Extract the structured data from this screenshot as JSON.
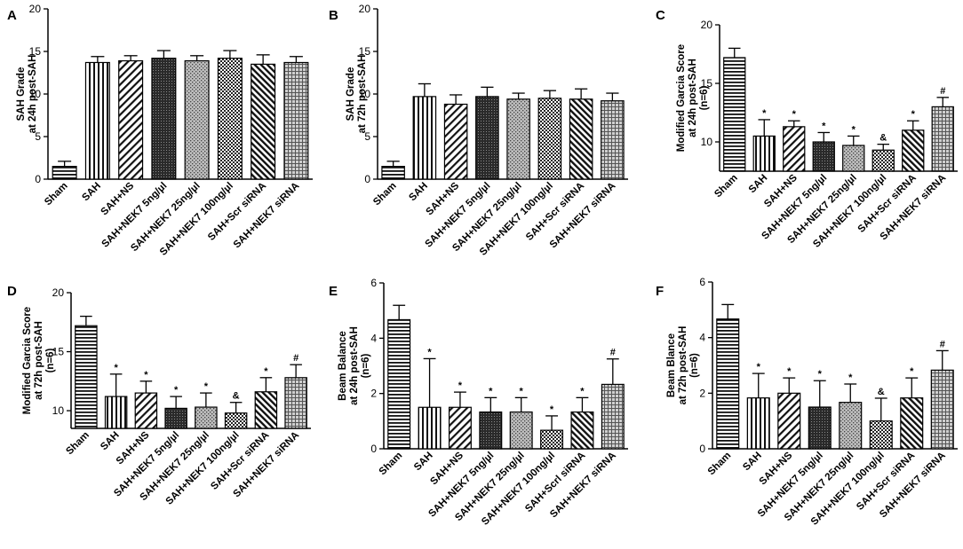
{
  "figure": {
    "categories_common": [
      "Sham",
      "SAH",
      "SAH+NS",
      "SAH+NEK7 5ng/µl",
      "SAH+NEK7 25ng/µl",
      "SAH+NEK7 100ng/µl",
      "SAH+Scr siRNA",
      "SAH+NEK7 siRNA"
    ]
  },
  "chart_data": [
    {
      "id": "A",
      "type": "bar",
      "panel_letter": "A",
      "ylabel": [
        "SAH Grade",
        "at 24h post-SAH"
      ],
      "ylim": [
        0,
        20
      ],
      "yticks": [
        0,
        5,
        10,
        15,
        20
      ],
      "categories": [
        "Sham",
        "SAH",
        "SAH+NS",
        "SAH+NEK7 5ng/µl",
        "SAH+NEK7 25ng/µl",
        "SAH+NEK7 100ng/µl",
        "SAH+Scr siRNA",
        "SAH+NEK7 siRNA"
      ],
      "values": [
        1.5,
        13.7,
        13.9,
        14.2,
        13.9,
        14.2,
        13.5,
        13.7
      ],
      "errors": [
        0.6,
        0.7,
        0.6,
        0.9,
        0.6,
        0.9,
        1.1,
        0.7
      ],
      "annotations": [
        "",
        "",
        "",
        "",
        "",
        "",
        "",
        ""
      ]
    },
    {
      "id": "B",
      "type": "bar",
      "panel_letter": "B",
      "ylabel": [
        "SAH Grade",
        "at 72h post-SAH"
      ],
      "ylim": [
        0,
        20
      ],
      "yticks": [
        0,
        5,
        10,
        15,
        20
      ],
      "categories": [
        "Sham",
        "SAH",
        "SAH+NS",
        "SAH+NEK7 5ng/µl",
        "SAH+NEK7 25ng/µl",
        "SAH+NEK7 100ng/µl",
        "SAH+Scr siRNA",
        "SAH+NEK7 siRNA"
      ],
      "values": [
        1.5,
        9.7,
        8.8,
        9.7,
        9.4,
        9.5,
        9.4,
        9.2
      ],
      "errors": [
        0.6,
        1.5,
        1.1,
        1.1,
        0.7,
        0.9,
        1.2,
        0.9
      ],
      "annotations": [
        "",
        "",
        "",
        "",
        "",
        "",
        "",
        ""
      ]
    },
    {
      "id": "C",
      "type": "bar",
      "panel_letter": "C",
      "ylabel": [
        "Modified Garcia Score",
        "at 24h post-SAH",
        "(n=6)"
      ],
      "ylim": [
        7.5,
        20
      ],
      "yticks": [
        10,
        15,
        20
      ],
      "categories": [
        "Sham",
        "SAH",
        "SAH+NS",
        "SAH+NEK7 5ng/µl",
        "SAH+NEK7 25ng/µl",
        "SAH+NEK7 100ng/µl",
        "SAH+Scr siRNA",
        "SAH+NEK7 siRNA"
      ],
      "values": [
        17.2,
        10.5,
        11.3,
        10.0,
        9.7,
        9.3,
        11.0,
        13.0
      ],
      "errors": [
        0.8,
        1.4,
        0.5,
        0.8,
        0.8,
        0.5,
        0.8,
        0.8
      ],
      "annotations": [
        "",
        "*",
        "*",
        "*",
        "*",
        "&",
        "*",
        "#"
      ]
    },
    {
      "id": "D",
      "type": "bar",
      "panel_letter": "D",
      "ylabel": [
        "Modified Garcia Score",
        "at 72h post-SAH",
        "(n=6)"
      ],
      "ylim": [
        8.5,
        20
      ],
      "yticks": [
        10,
        15,
        20
      ],
      "categories": [
        "Sham",
        "SAH",
        "SAH+NS",
        "SAH+NEK7 5ng/µl",
        "SAH+NEK7 25ng/µl",
        "SAH+NEK7 100ng/µl",
        "SAH+Scr siRNA",
        "SAH+NEK7 siRNA"
      ],
      "values": [
        17.2,
        11.2,
        11.5,
        10.2,
        10.3,
        9.8,
        11.6,
        12.8
      ],
      "errors": [
        0.8,
        1.9,
        1.0,
        1.0,
        1.2,
        0.9,
        1.2,
        1.1
      ],
      "annotations": [
        "",
        "*",
        "*",
        "*",
        "*",
        "&",
        "*",
        "#"
      ]
    },
    {
      "id": "E",
      "type": "bar",
      "panel_letter": "E",
      "ylabel": [
        "Beam Balance",
        "at 24h post-SAH",
        "(n=6)"
      ],
      "ylim": [
        0,
        6
      ],
      "yticks": [
        0,
        2,
        4,
        6
      ],
      "categories": [
        "Sham",
        "SAH",
        "SAH+NS",
        "SAH+NEK7 5ng/µl",
        "SAH+NEK7 25ng/µl",
        "SAH+NEK7 100ng/µl",
        "SAH+Scrl siRNA",
        "SAH+NEK7 siRNA"
      ],
      "values": [
        4.67,
        1.5,
        1.5,
        1.33,
        1.33,
        0.67,
        1.33,
        2.33
      ],
      "errors": [
        0.52,
        1.76,
        0.55,
        0.52,
        0.52,
        0.52,
        0.52,
        0.92
      ],
      "annotations": [
        "",
        "*",
        "*",
        "*",
        "*",
        "*",
        "*",
        "#"
      ]
    },
    {
      "id": "F",
      "type": "bar",
      "panel_letter": "F",
      "ylabel": [
        "Beam Blance",
        "at 72h post-SAH",
        "(n=6)"
      ],
      "ylim": [
        0,
        6
      ],
      "yticks": [
        0,
        2,
        4,
        6
      ],
      "categories": [
        "Sham",
        "SAH",
        "SAH+NS",
        "SAH+NEK7 5ng/µl",
        "SAH+NEK7 25ng/µl",
        "SAH+NEK7 100ng/µl",
        "SAH+Scr siRNA",
        "SAH+NEK7 siRNA"
      ],
      "values": [
        4.67,
        1.83,
        2.0,
        1.5,
        1.67,
        1.0,
        1.83,
        2.83
      ],
      "errors": [
        0.52,
        0.88,
        0.55,
        0.95,
        0.66,
        0.82,
        0.72,
        0.7
      ],
      "annotations": [
        "",
        "*",
        "*",
        "*",
        "*",
        "&",
        "*",
        "#"
      ]
    }
  ]
}
